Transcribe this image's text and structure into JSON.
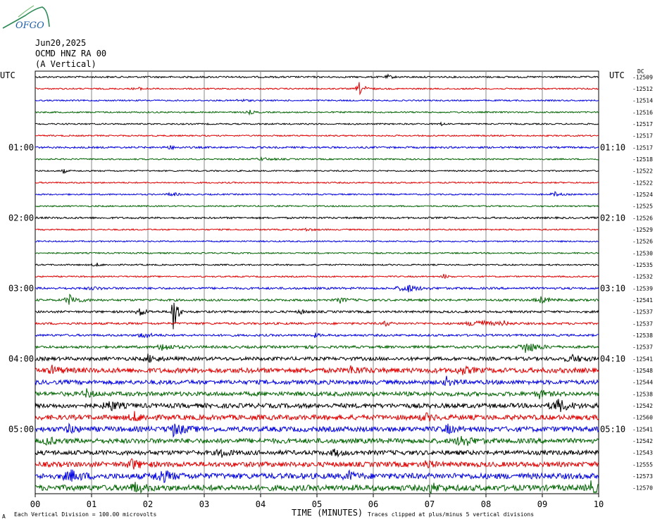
{
  "header": {
    "date": "Jun20,2025",
    "station": "OCMD HNZ RA 00",
    "component": "(A Vertical)",
    "logo_text": "OFGO"
  },
  "axis": {
    "left_utc_label": "UTC",
    "right_utc_label": "UTC",
    "dc_label": "DC",
    "xlabel": "TIME (MINUTES)",
    "x_ticks": [
      "00",
      "01",
      "02",
      "03",
      "04",
      "05",
      "06",
      "07",
      "08",
      "09",
      "10"
    ]
  },
  "footer": {
    "left_mark": "A",
    "scale_note": "Each Vertical Division =  100.00 microvolts",
    "clip_note": "Traces clipped at plus/minus 5 vertical divisions"
  },
  "colors": {
    "black": "#000000",
    "red": "#e00000",
    "blue": "#0000e0",
    "green": "#006400",
    "grid": "#888888"
  },
  "chart_data": {
    "type": "line",
    "title": "OCMD HNZ RA 00 (A Vertical)",
    "xlabel": "TIME (MINUTES)",
    "xlim": [
      0,
      10
    ],
    "trace_minutes": 10,
    "color_cycle": [
      "black",
      "red",
      "blue",
      "green"
    ],
    "left_time_labels": [
      {
        "row": 6,
        "text": "01:00"
      },
      {
        "row": 12,
        "text": "02:00"
      },
      {
        "row": 18,
        "text": "03:00"
      },
      {
        "row": 24,
        "text": "04:00"
      },
      {
        "row": 30,
        "text": "05:00"
      }
    ],
    "right_time_labels": [
      {
        "row": 6,
        "text": "01:10"
      },
      {
        "row": 12,
        "text": "02:10"
      },
      {
        "row": 18,
        "text": "03:10"
      },
      {
        "row": 24,
        "text": "04:10"
      },
      {
        "row": 30,
        "text": "05:10"
      }
    ],
    "dc_offsets": [
      "-12509",
      "-12512",
      "-12514",
      "-12516",
      "-12517",
      "-12517",
      "-12517",
      "-12518",
      "-12522",
      "-12522",
      "-12524",
      "-12525",
      "-12526",
      "-12529",
      "-12526",
      "-12530",
      "-12535",
      "-12532",
      "-12539",
      "-12541",
      "-12537",
      "-12537",
      "-12538",
      "-12537",
      "-12541",
      "-12548",
      "-12544",
      "-12538",
      "-12542",
      "-12560",
      "-12541",
      "-12542",
      "-12543",
      "-12555",
      "-12573",
      "-12570"
    ],
    "noise_level": [
      1.2,
      1,
      1,
      1,
      1,
      1,
      1.3,
      1,
      1,
      1,
      1,
      1,
      1.3,
      1,
      1,
      1,
      1,
      1,
      1.5,
      1.5,
      1.5,
      1.5,
      1.5,
      1.8,
      2.5,
      3.5,
      3,
      3,
      3.2,
      3.5,
      3.6,
      3.4,
      3.2,
      3.5,
      4,
      4
    ],
    "events": [
      {
        "row": 0,
        "minute": 6.25,
        "amp": 3,
        "dur": 0.2
      },
      {
        "row": 1,
        "minute": 1.8,
        "amp": 2,
        "dur": 0.3
      },
      {
        "row": 1,
        "minute": 5.75,
        "amp": 9,
        "dur": 0.25
      },
      {
        "row": 2,
        "minute": 3.6,
        "amp": 2,
        "dur": 0.4
      },
      {
        "row": 3,
        "minute": 3.8,
        "amp": 3,
        "dur": 0.2
      },
      {
        "row": 4,
        "minute": 7.2,
        "amp": 3,
        "dur": 0.15
      },
      {
        "row": 6,
        "minute": 2.35,
        "amp": 3,
        "dur": 0.3
      },
      {
        "row": 7,
        "minute": 4.0,
        "amp": 2,
        "dur": 0.5
      },
      {
        "row": 8,
        "minute": 0.5,
        "amp": 4,
        "dur": 0.1
      },
      {
        "row": 10,
        "minute": 2.4,
        "amp": 4,
        "dur": 0.25
      },
      {
        "row": 10,
        "minute": 9.2,
        "amp": 4,
        "dur": 0.25
      },
      {
        "row": 13,
        "minute": 4.8,
        "amp": 2,
        "dur": 0.3
      },
      {
        "row": 16,
        "minute": 1.05,
        "amp": 4,
        "dur": 0.2
      },
      {
        "row": 17,
        "minute": 7.25,
        "amp": 3,
        "dur": 0.2
      },
      {
        "row": 18,
        "minute": 6.55,
        "amp": 7,
        "dur": 0.5
      },
      {
        "row": 18,
        "minute": 1.0,
        "amp": 2,
        "dur": 0.4
      },
      {
        "row": 19,
        "minute": 0.6,
        "amp": 8,
        "dur": 0.4
      },
      {
        "row": 19,
        "minute": 5.4,
        "amp": 4,
        "dur": 0.3
      },
      {
        "row": 19,
        "minute": 8.95,
        "amp": 5,
        "dur": 0.4
      },
      {
        "row": 20,
        "minute": 2.45,
        "amp": 45,
        "dur": 0.15
      },
      {
        "row": 20,
        "minute": 1.85,
        "amp": 7,
        "dur": 0.25
      },
      {
        "row": 20,
        "minute": 4.7,
        "amp": 4,
        "dur": 0.2
      },
      {
        "row": 21,
        "minute": 6.2,
        "amp": 6,
        "dur": 0.15
      },
      {
        "row": 21,
        "minute": 7.8,
        "amp": 7,
        "dur": 0.6
      },
      {
        "row": 21,
        "minute": 8.3,
        "amp": 4,
        "dur": 0.2
      },
      {
        "row": 22,
        "minute": 1.9,
        "amp": 6,
        "dur": 0.3
      },
      {
        "row": 22,
        "minute": 4.95,
        "amp": 3,
        "dur": 0.2
      },
      {
        "row": 23,
        "minute": 2.25,
        "amp": 6,
        "dur": 0.4
      },
      {
        "row": 23,
        "minute": 4.75,
        "amp": 3,
        "dur": 0.2
      },
      {
        "row": 23,
        "minute": 8.7,
        "amp": 9,
        "dur": 0.5
      },
      {
        "row": 24,
        "minute": 2.0,
        "amp": 5,
        "dur": 0.4
      },
      {
        "row": 24,
        "minute": 9.5,
        "amp": 5,
        "dur": 0.6
      },
      {
        "row": 25,
        "minute": 0.3,
        "amp": 5,
        "dur": 0.4
      },
      {
        "row": 25,
        "minute": 5.6,
        "amp": 5,
        "dur": 0.4
      },
      {
        "row": 25,
        "minute": 7.55,
        "amp": 5,
        "dur": 0.4
      },
      {
        "row": 26,
        "minute": 7.3,
        "amp": 6,
        "dur": 0.3
      },
      {
        "row": 27,
        "minute": 0.9,
        "amp": 6,
        "dur": 0.3
      },
      {
        "row": 27,
        "minute": 8.95,
        "amp": 5,
        "dur": 0.3
      },
      {
        "row": 28,
        "minute": 1.3,
        "amp": 8,
        "dur": 0.4
      },
      {
        "row": 28,
        "minute": 9.25,
        "amp": 10,
        "dur": 0.5
      },
      {
        "row": 29,
        "minute": 1.75,
        "amp": 6,
        "dur": 0.4
      },
      {
        "row": 29,
        "minute": 6.9,
        "amp": 5,
        "dur": 0.4
      },
      {
        "row": 30,
        "minute": 0.6,
        "amp": 6,
        "dur": 0.3
      },
      {
        "row": 30,
        "minute": 2.45,
        "amp": 8,
        "dur": 0.5
      },
      {
        "row": 30,
        "minute": 7.3,
        "amp": 6,
        "dur": 0.3
      },
      {
        "row": 31,
        "minute": 7.55,
        "amp": 10,
        "dur": 0.4
      },
      {
        "row": 31,
        "minute": 0.2,
        "amp": 6,
        "dur": 0.3
      },
      {
        "row": 32,
        "minute": 3.3,
        "amp": 6,
        "dur": 0.3
      },
      {
        "row": 32,
        "minute": 5.3,
        "amp": 5,
        "dur": 0.3
      },
      {
        "row": 33,
        "minute": 1.7,
        "amp": 7,
        "dur": 0.4
      },
      {
        "row": 33,
        "minute": 6.95,
        "amp": 8,
        "dur": 0.2
      },
      {
        "row": 34,
        "minute": 0.6,
        "amp": 8,
        "dur": 0.5
      },
      {
        "row": 34,
        "minute": 2.2,
        "amp": 9,
        "dur": 0.5
      },
      {
        "row": 34,
        "minute": 5.55,
        "amp": 6,
        "dur": 0.3
      },
      {
        "row": 35,
        "minute": 1.75,
        "amp": 7,
        "dur": 0.4
      },
      {
        "row": 35,
        "minute": 7.0,
        "amp": 6,
        "dur": 0.4
      },
      {
        "row": 35,
        "minute": 9.85,
        "amp": 8,
        "dur": 0.3
      }
    ]
  }
}
